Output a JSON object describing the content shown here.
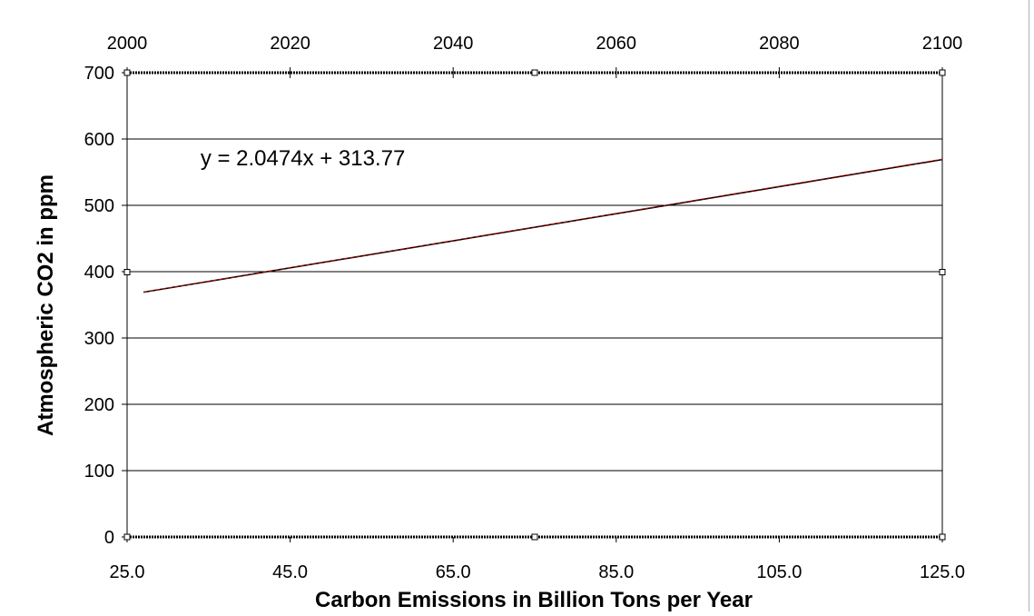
{
  "chart_data": {
    "type": "line",
    "title": "",
    "xlabel": "Carbon Emissions in Billion Tons per Year",
    "ylabel": "Atmospheric CO2 in ppm",
    "xlim": [
      25.0,
      125.0
    ],
    "ylim": [
      0,
      700
    ],
    "x_ticks": [
      "25.0",
      "45.0",
      "65.0",
      "85.0",
      "105.0",
      "125.0"
    ],
    "y_ticks": [
      "0",
      "100",
      "200",
      "300",
      "400",
      "500",
      "600",
      "700"
    ],
    "secondary_x": {
      "label": "",
      "lim": [
        2000,
        2100
      ],
      "ticks": [
        "2000",
        "2020",
        "2040",
        "2060",
        "2080",
        "2100"
      ]
    },
    "series": [
      {
        "x": [
          27.0,
          125.0
        ],
        "y": [
          369.0,
          569.0
        ],
        "color": "#000000"
      },
      {
        "x": [
          27.0,
          125.0
        ],
        "y": [
          369.05,
          569.7
        ],
        "color": "#cc0000",
        "style": "dashed"
      }
    ],
    "trendline": {
      "slope": 2.0474,
      "intercept": 313.77
    },
    "annotations": [
      {
        "text": "y = 2.0474x + 313.77",
        "x": 34,
        "y": 560
      }
    ],
    "grid": {
      "horizontal": true,
      "vertical": false
    },
    "legend": "none"
  }
}
